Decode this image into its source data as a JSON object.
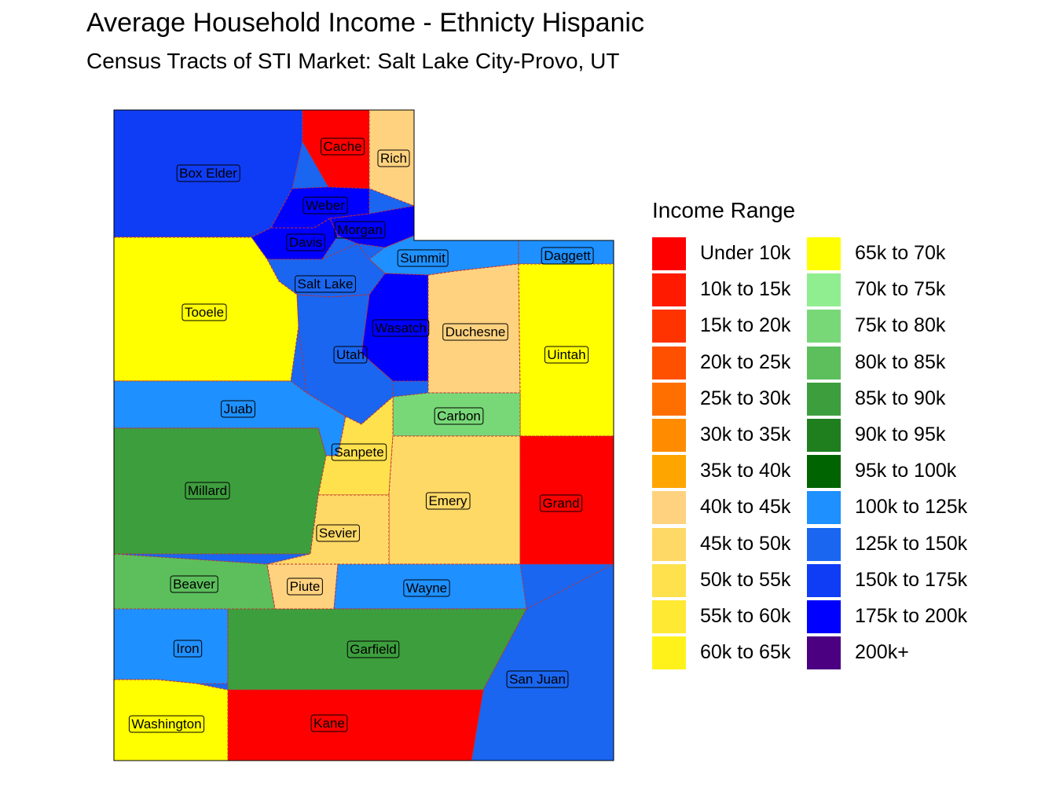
{
  "title": "Average Household Income - Ethnicty Hispanic",
  "subtitle": "Census Tracts of STI Market: Salt Lake City-Provo, UT",
  "legend": {
    "title": "Income Range",
    "items": [
      {
        "label": "Under 10k",
        "color": "#ff0000"
      },
      {
        "label": "10k to 15k",
        "color": "#ff1a00"
      },
      {
        "label": "15k to 20k",
        "color": "#ff3300"
      },
      {
        "label": "20k to 25k",
        "color": "#ff5000"
      },
      {
        "label": "25k to 30k",
        "color": "#ff6f00"
      },
      {
        "label": "30k to 35k",
        "color": "#ff8c00"
      },
      {
        "label": "35k to 40k",
        "color": "#ffa500"
      },
      {
        "label": "40k to 45k",
        "color": "#ffd27f"
      },
      {
        "label": "45k to 50k",
        "color": "#ffd966"
      },
      {
        "label": "50k to 55k",
        "color": "#ffe14d"
      },
      {
        "label": "55k to 60k",
        "color": "#ffe933"
      },
      {
        "label": "60k to 65k",
        "color": "#fff21a"
      },
      {
        "label": "65k to 70k",
        "color": "#ffff00"
      },
      {
        "label": "70k to 75k",
        "color": "#90ee90"
      },
      {
        "label": "75k to 80k",
        "color": "#78d878"
      },
      {
        "label": "80k to 85k",
        "color": "#5cbf5c"
      },
      {
        "label": "85k to 90k",
        "color": "#3d9e3d"
      },
      {
        "label": "90k to 95k",
        "color": "#1f7f1f"
      },
      {
        "label": "95k to 100k",
        "color": "#006400"
      },
      {
        "label": "100k to 125k",
        "color": "#1e90ff"
      },
      {
        "label": "125k to 150k",
        "color": "#1a66f0"
      },
      {
        "label": "150k to 175k",
        "color": "#0f3cf5"
      },
      {
        "label": "175k to 200k",
        "color": "#0000ff"
      },
      {
        "label": "200k+",
        "color": "#4b0082"
      }
    ]
  },
  "counties": [
    {
      "name": "Box Elder",
      "color": "#0f3cf5"
    },
    {
      "name": "Cache",
      "color": "#ff0000"
    },
    {
      "name": "Rich",
      "color": "#ffd27f"
    },
    {
      "name": "Weber",
      "color": "#0000ff"
    },
    {
      "name": "Morgan",
      "color": "#0000ff"
    },
    {
      "name": "Davis",
      "color": "#0000ff"
    },
    {
      "name": "Summit",
      "color": "#1e90ff"
    },
    {
      "name": "Daggett",
      "color": "#1e90ff"
    },
    {
      "name": "Salt Lake",
      "color": "#1a66f0"
    },
    {
      "name": "Tooele",
      "color": "#ffff00"
    },
    {
      "name": "Wasatch",
      "color": "#0000ff"
    },
    {
      "name": "Duchesne",
      "color": "#ffd27f"
    },
    {
      "name": "Uintah",
      "color": "#ffff00"
    },
    {
      "name": "Utah",
      "color": "#1a66f0"
    },
    {
      "name": "Juab",
      "color": "#1e90ff"
    },
    {
      "name": "Carbon",
      "color": "#78d878"
    },
    {
      "name": "Sanpete",
      "color": "#ffe14d"
    },
    {
      "name": "Millard",
      "color": "#3d9e3d"
    },
    {
      "name": "Emery",
      "color": "#ffd966"
    },
    {
      "name": "Grand",
      "color": "#ff0000"
    },
    {
      "name": "Sevier",
      "color": "#ffd966"
    },
    {
      "name": "Beaver",
      "color": "#5cbf5c"
    },
    {
      "name": "Piute",
      "color": "#ffd27f"
    },
    {
      "name": "Wayne",
      "color": "#1e90ff"
    },
    {
      "name": "Iron",
      "color": "#1e90ff"
    },
    {
      "name": "Garfield",
      "color": "#3d9e3d"
    },
    {
      "name": "San Juan",
      "color": "#1a66f0"
    },
    {
      "name": "Washington",
      "color": "#ffff00"
    },
    {
      "name": "Kane",
      "color": "#ff0000"
    }
  ]
}
